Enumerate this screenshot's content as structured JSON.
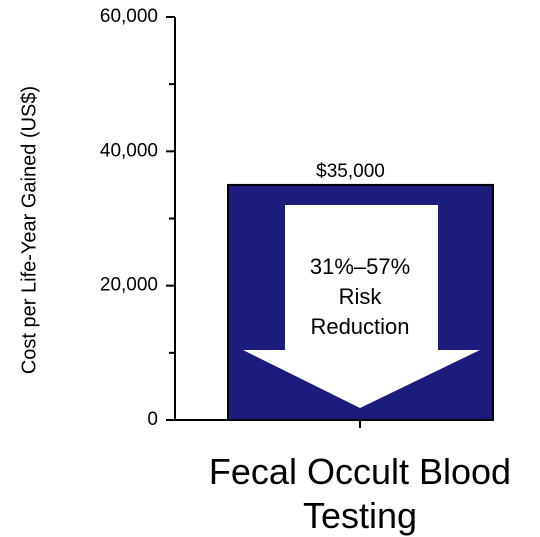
{
  "chart_data": {
    "type": "bar",
    "y_label": "Cost per Life-Year Gained (US$)",
    "categories": [
      "Fecal Occult Blood Testing"
    ],
    "values": [
      35000
    ],
    "value_labels": [
      "$35,000"
    ],
    "color": "#1c1c7c",
    "annotation": "31%–57% Risk Reduction",
    "ylim": [
      0,
      60000
    ],
    "yticks": [
      0,
      {
        "value": 20000,
        "label": "20,000"
      },
      {
        "value": 40000,
        "label": "40,000"
      },
      {
        "value": 60000,
        "label": "60,000"
      }
    ],
    "yminorticks": [
      10000,
      30000,
      50000
    ]
  }
}
